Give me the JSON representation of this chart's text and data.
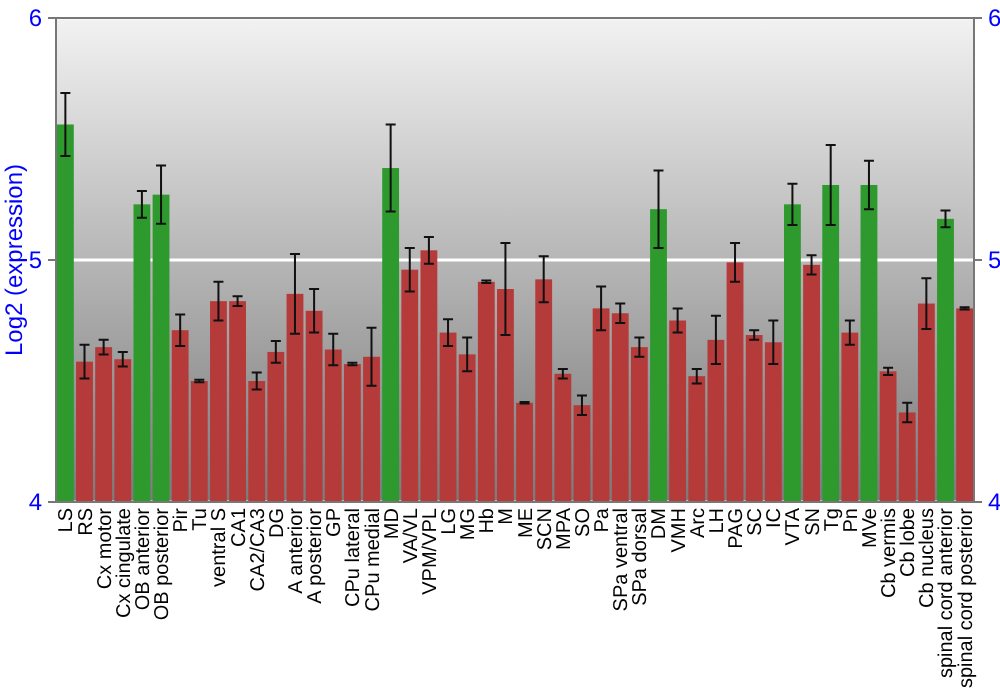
{
  "chart_data": {
    "type": "bar",
    "ylabel": "Log2 (expression)",
    "categories": [
      "LS",
      "RS",
      "Cx motor",
      "Cx cingulate",
      "OB anterior",
      "OB posterior",
      "Pir",
      "Tu",
      "ventral S",
      "CA1",
      "CA2/CA3",
      "DG",
      "A anterior",
      "A posterior",
      "GP",
      "CPu lateral",
      "CPu medial",
      "MD",
      "VA/VL",
      "VPM/VPL",
      "LG",
      "MG",
      "Hb",
      "M",
      "ME",
      "SCN",
      "MPA",
      "SO",
      "Pa",
      "SPa ventral",
      "SPa dorsal",
      "DM",
      "VMH",
      "Arc",
      "LH",
      "PAG",
      "SC",
      "IC",
      "VTA",
      "SN",
      "Tg",
      "Pn",
      "MVe",
      "Cb vermis",
      "Cb lobe",
      "Cb nucleus",
      "spinal cord anterior",
      "spinal cord posterior"
    ],
    "values": [
      5.56,
      4.58,
      4.64,
      4.59,
      5.23,
      5.27,
      4.71,
      4.5,
      4.83,
      4.83,
      4.5,
      4.62,
      4.86,
      4.79,
      4.63,
      4.57,
      4.6,
      5.38,
      4.96,
      5.04,
      4.7,
      4.61,
      4.91,
      4.88,
      4.41,
      4.92,
      4.53,
      4.4,
      4.8,
      4.78,
      4.64,
      5.21,
      4.75,
      4.52,
      4.67,
      4.99,
      4.69,
      4.66,
      5.23,
      4.98,
      5.31,
      4.7,
      5.31,
      4.54,
      4.37,
      4.82,
      5.17,
      4.8
    ],
    "errors": [
      0.13,
      0.07,
      0.03,
      0.03,
      0.055,
      0.12,
      0.065,
      0.005,
      0.08,
      0.02,
      0.035,
      0.045,
      0.165,
      0.09,
      0.065,
      0.005,
      0.12,
      0.18,
      0.09,
      0.055,
      0.055,
      0.07,
      0.005,
      0.19,
      0.003,
      0.095,
      0.02,
      0.04,
      0.09,
      0.04,
      0.04,
      0.16,
      0.05,
      0.03,
      0.1,
      0.08,
      0.02,
      0.09,
      0.085,
      0.04,
      0.165,
      0.05,
      0.1,
      0.015,
      0.04,
      0.105,
      0.035,
      0.005
    ],
    "colors": [
      "#2e9a2e",
      "#b53b3b",
      "#b53b3b",
      "#b53b3b",
      "#2e9a2e",
      "#2e9a2e",
      "#b53b3b",
      "#b53b3b",
      "#b53b3b",
      "#b53b3b",
      "#b53b3b",
      "#b53b3b",
      "#b53b3b",
      "#b53b3b",
      "#b53b3b",
      "#b53b3b",
      "#b53b3b",
      "#2e9a2e",
      "#b53b3b",
      "#b53b3b",
      "#b53b3b",
      "#b53b3b",
      "#b53b3b",
      "#b53b3b",
      "#b53b3b",
      "#b53b3b",
      "#b53b3b",
      "#b53b3b",
      "#b53b3b",
      "#b53b3b",
      "#b53b3b",
      "#2e9a2e",
      "#b53b3b",
      "#b53b3b",
      "#b53b3b",
      "#b53b3b",
      "#b53b3b",
      "#b53b3b",
      "#2e9a2e",
      "#b53b3b",
      "#2e9a2e",
      "#b53b3b",
      "#2e9a2e",
      "#b53b3b",
      "#b53b3b",
      "#b53b3b",
      "#2e9a2e",
      "#b53b3b"
    ],
    "ylim": [
      4,
      6
    ],
    "yticks": [
      4,
      5,
      6
    ],
    "y2lim": [
      4,
      6
    ],
    "y2ticks": [
      4,
      5,
      6
    ],
    "grid": "y"
  }
}
